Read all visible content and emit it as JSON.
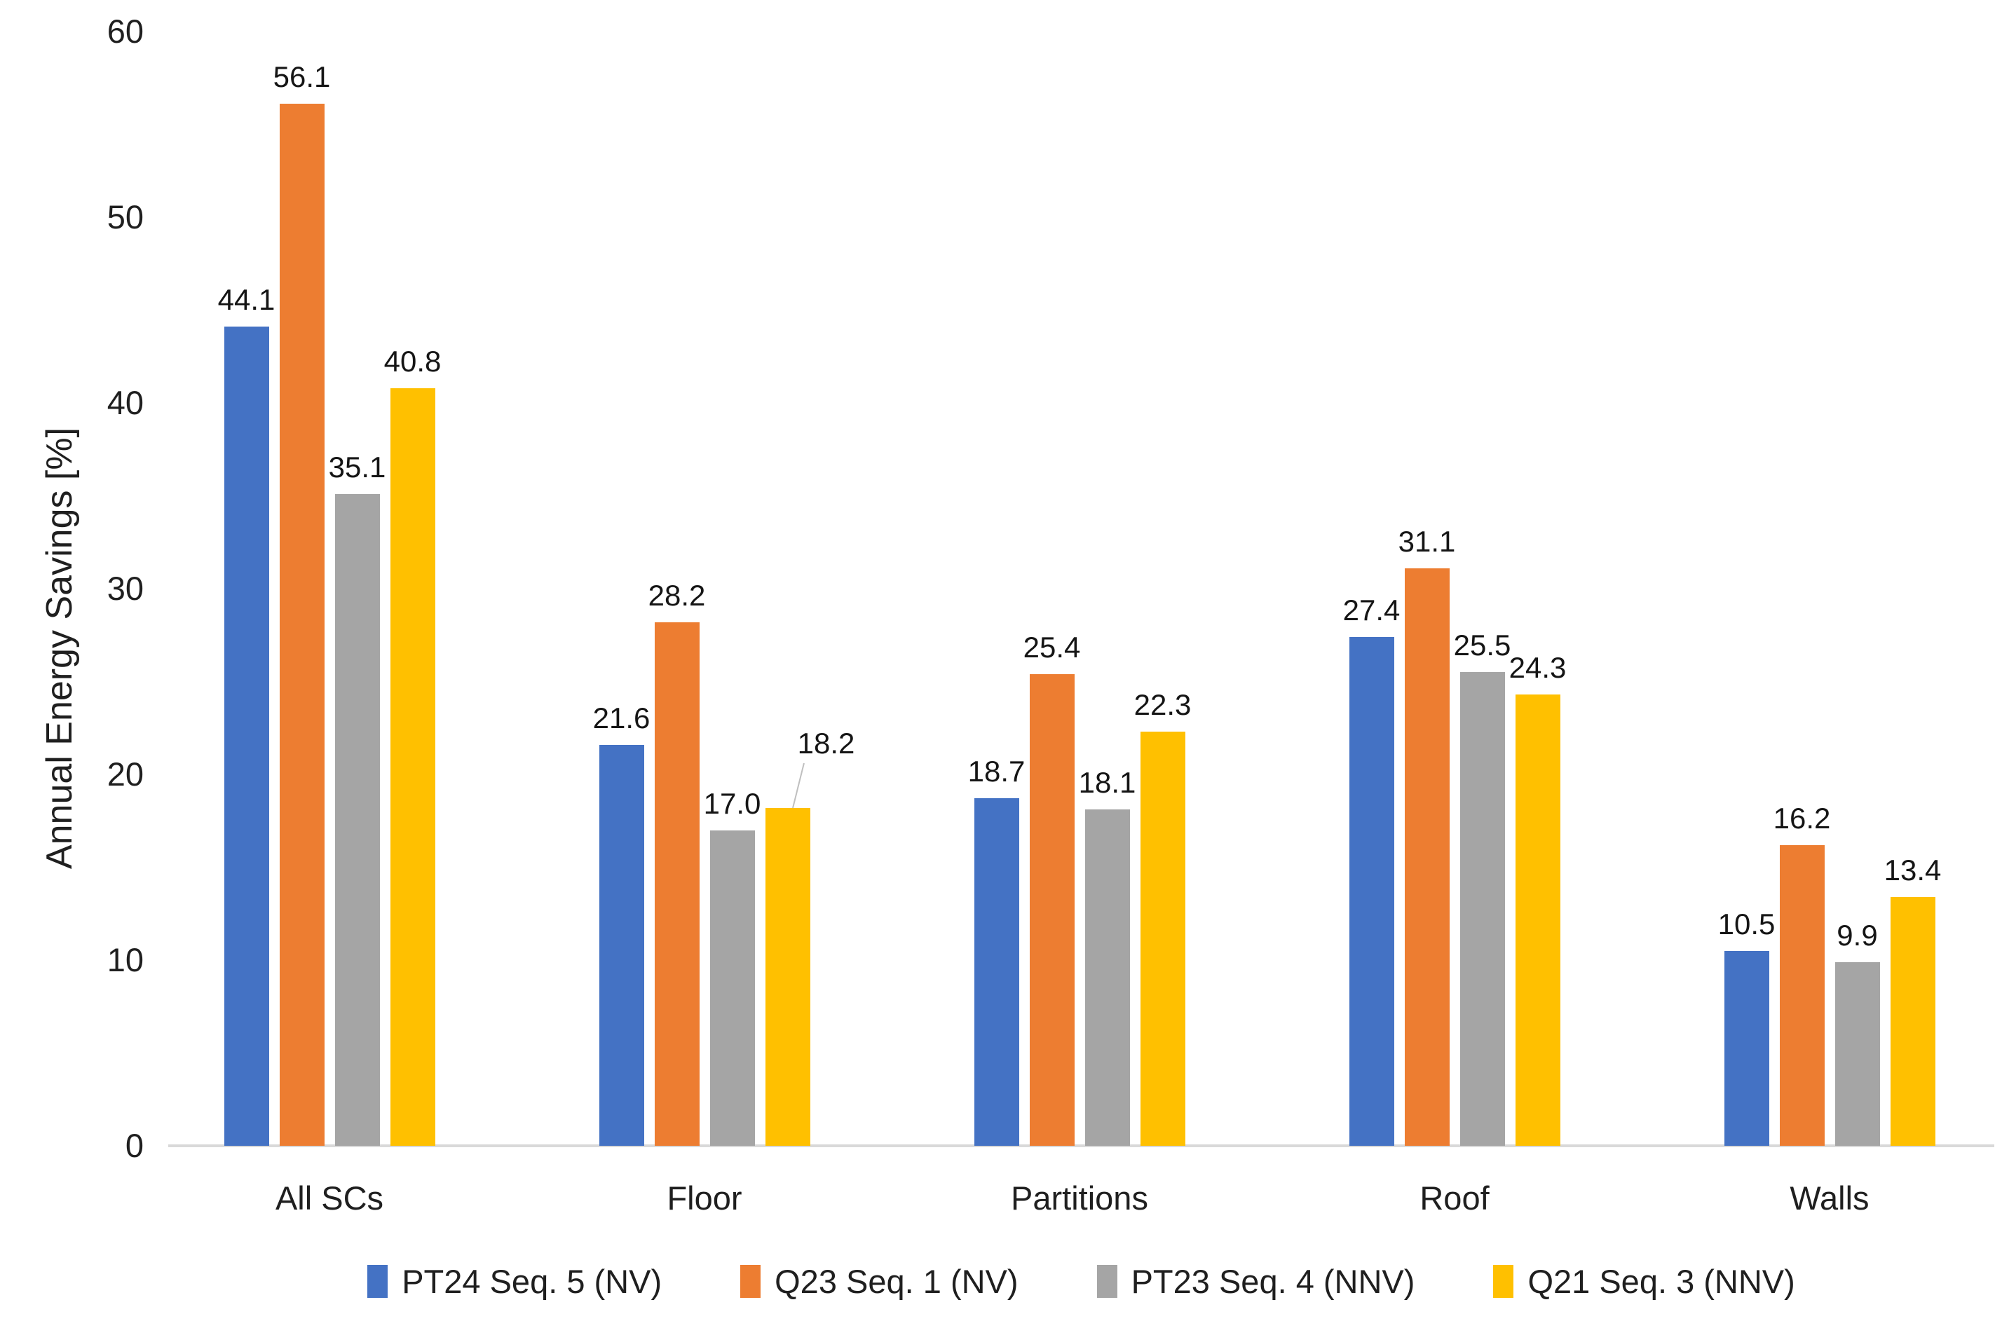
{
  "chart_data": {
    "type": "bar",
    "title": "",
    "xlabel": "",
    "ylabel": "Annual Energy Savings [%]",
    "ylim": [
      0,
      60
    ],
    "yticks": [
      0,
      10,
      20,
      30,
      40,
      50,
      60
    ],
    "grid": false,
    "legend_position": "bottom",
    "data_labels": true,
    "data_label_decimals": 1,
    "axis_line_color": "#d9d9d9",
    "leader_line_color": "#bfbfbf",
    "categories": [
      "All SCs",
      "Floor",
      "Partitions",
      "Roof",
      "Walls"
    ],
    "series": [
      {
        "name": "PT24 Seq. 5 (NV)",
        "color": "#4472C4",
        "values": [
          44.1,
          21.6,
          18.7,
          27.4,
          10.5
        ]
      },
      {
        "name": "Q23 Seq. 1 (NV)",
        "color": "#ED7D31",
        "values": [
          56.1,
          28.2,
          25.4,
          31.1,
          16.2
        ]
      },
      {
        "name": "PT23 Seq. 4 (NNV)",
        "color": "#A5A5A5",
        "values": [
          35.1,
          17.0,
          18.1,
          25.5,
          9.9
        ]
      },
      {
        "name": "Q21 Seq. 3 (NNV)",
        "color": "#FFC000",
        "values": [
          40.8,
          18.2,
          22.3,
          24.3,
          13.4
        ]
      }
    ],
    "callout": {
      "category_index": 1,
      "series_index": 3,
      "note": "label displaced up-right with leader line"
    }
  }
}
